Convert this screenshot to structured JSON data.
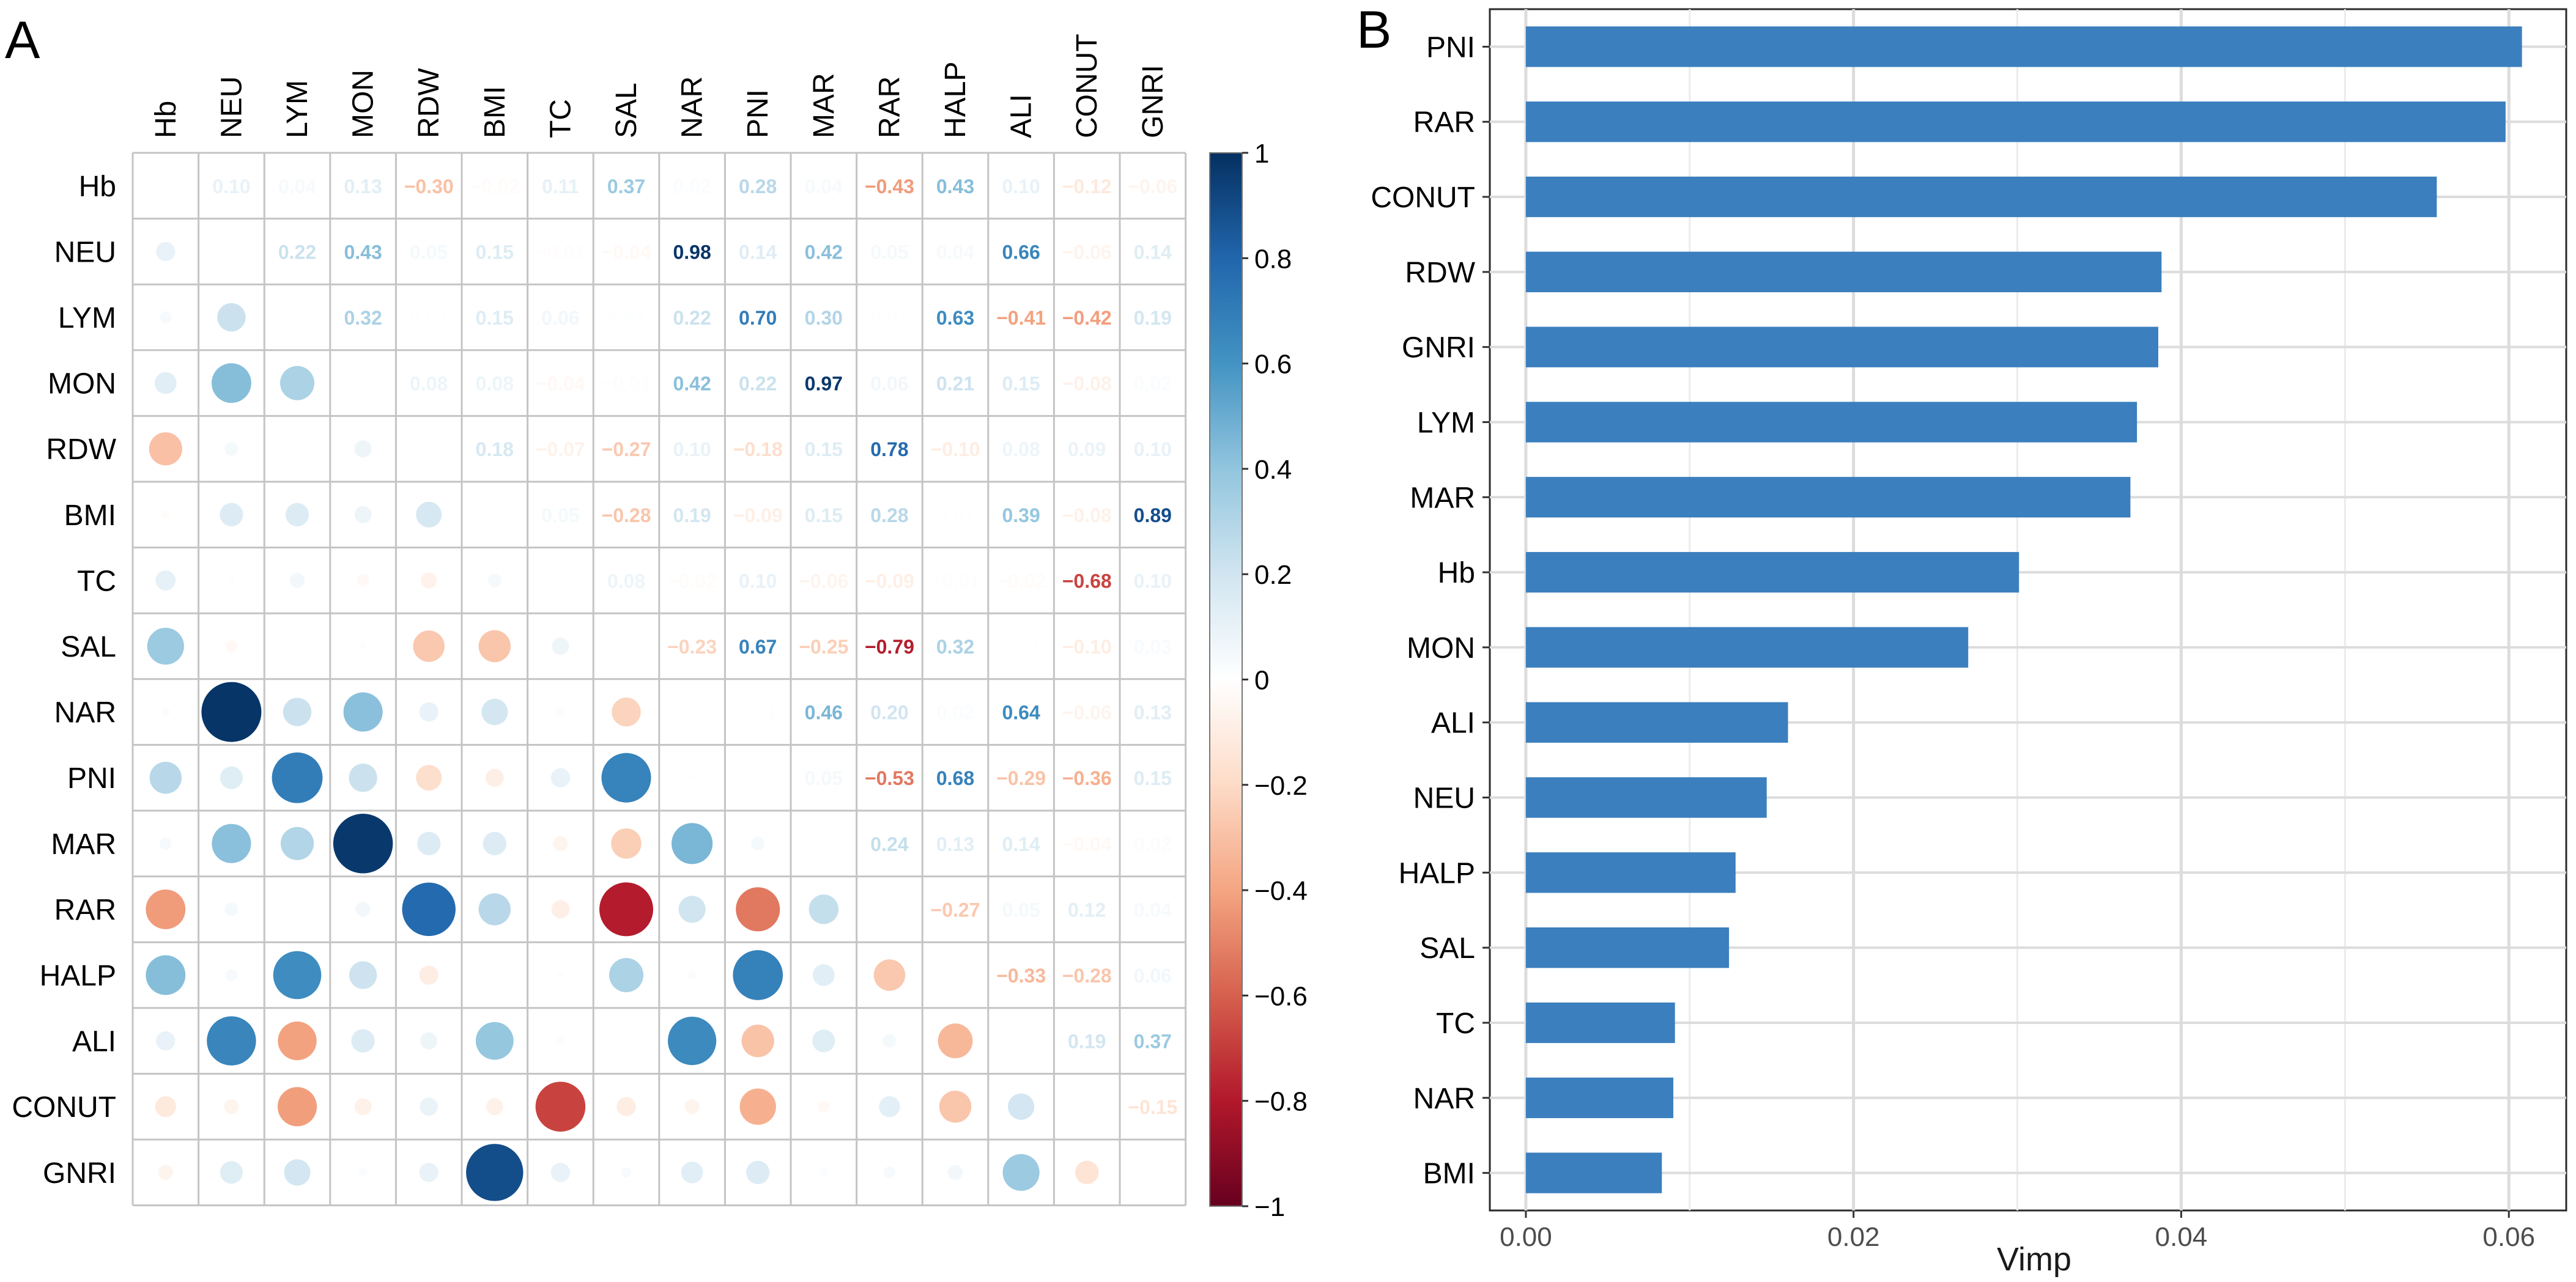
{
  "panels": [
    {
      "label": "A",
      "chart_data": {
        "type": "heatmap",
        "subtype": "correlation-matrix",
        "variables": [
          "Hb",
          "NEU",
          "LYM",
          "MON",
          "RDW",
          "BMI",
          "TC",
          "SAL",
          "NAR",
          "PNI",
          "MAR",
          "RAR",
          "HALP",
          "ALI",
          "CONUT",
          "GNRI"
        ],
        "upper_triangle_labels": [
          [
            null,
            "0.10",
            "0.04",
            "0.13",
            "−0.30",
            "−0.02",
            "0.11",
            "0.37",
            "0.02",
            "0.28",
            "0.04",
            "−0.43",
            "0.43",
            "0.10",
            "−0.12",
            "−0.06"
          ],
          [
            null,
            null,
            "0.22",
            "0.43",
            "0.05",
            "0.15",
            "−0.01",
            "−0.04",
            "0.98",
            "0.14",
            "0.42",
            "0.05",
            "0.04",
            "0.66",
            "−0.06",
            "0.14"
          ],
          [
            null,
            null,
            null,
            "0.32",
            "0.01",
            "0.15",
            "0.06",
            "0.01",
            "0.22",
            "0.70",
            "0.30",
            "0.01",
            "0.63",
            "−0.41",
            "−0.42",
            "0.19"
          ],
          [
            null,
            null,
            null,
            null,
            "0.08",
            "0.08",
            "−0.04",
            "−0.01",
            "0.42",
            "0.22",
            "0.97",
            "0.06",
            "0.21",
            "0.15",
            "−0.08",
            "0.02"
          ],
          [
            null,
            null,
            null,
            null,
            null,
            "0.18",
            "−0.07",
            "−0.27",
            "0.10",
            "−0.18",
            "0.15",
            "0.78",
            "−0.10",
            "0.08",
            "0.09",
            "0.10"
          ],
          [
            null,
            null,
            null,
            null,
            null,
            null,
            "0.05",
            "−0.28",
            "0.19",
            "−0.09",
            "0.15",
            "0.28",
            "0.01",
            "0.39",
            "−0.08",
            "0.89"
          ],
          [
            null,
            null,
            null,
            null,
            null,
            null,
            null,
            "0.08",
            "−0.02",
            "0.10",
            "−0.06",
            "−0.09",
            "−0.01",
            "−0.02",
            "−0.68",
            "0.10"
          ],
          [
            null,
            null,
            null,
            null,
            null,
            null,
            null,
            null,
            "−0.23",
            "0.67",
            "−0.25",
            "−0.79",
            "0.32",
            "0.01",
            "−0.10",
            "0.03"
          ],
          [
            null,
            null,
            null,
            null,
            null,
            null,
            null,
            null,
            null,
            "0.01",
            "0.46",
            "0.20",
            "0.02",
            "0.64",
            "−0.06",
            "0.13"
          ],
          [
            null,
            null,
            null,
            null,
            null,
            null,
            null,
            null,
            null,
            null,
            "0.05",
            "−0.53",
            "0.68",
            "−0.29",
            "−0.36",
            "0.15"
          ],
          [
            null,
            null,
            null,
            null,
            null,
            null,
            null,
            null,
            null,
            null,
            null,
            "0.24",
            "0.13",
            "0.14",
            "−0.04",
            "0.02"
          ],
          [
            null,
            null,
            null,
            null,
            null,
            null,
            null,
            null,
            null,
            null,
            null,
            null,
            "−0.27",
            "0.05",
            "0.12",
            "0.04"
          ],
          [
            null,
            null,
            null,
            null,
            null,
            null,
            null,
            null,
            null,
            null,
            null,
            null,
            null,
            "−0.33",
            "−0.28",
            "0.06"
          ],
          [
            null,
            null,
            null,
            null,
            null,
            null,
            null,
            null,
            null,
            null,
            null,
            null,
            null,
            null,
            "0.19",
            "0.37"
          ],
          [
            null,
            null,
            null,
            null,
            null,
            null,
            null,
            null,
            null,
            null,
            null,
            null,
            null,
            null,
            null,
            "−0.15"
          ],
          [
            null,
            null,
            null,
            null,
            null,
            null,
            null,
            null,
            null,
            null,
            null,
            null,
            null,
            null,
            null,
            null
          ]
        ],
        "lower_triangle": "circles sized and coloured by |r| (mirror of upper triangle)",
        "colorbar": {
          "min": -1,
          "max": 1,
          "ticks": [
            1,
            0.8,
            0.6,
            0.4,
            0.2,
            0,
            -0.2,
            -0.4,
            -0.6,
            -0.8,
            -1
          ],
          "tick_labels": [
            "1",
            "0.8",
            "0.6",
            "0.4",
            "0.2",
            "0",
            "−0.2",
            "−0.4",
            "−0.6",
            "−0.8",
            "−1"
          ]
        },
        "palette": [
          "#67001F",
          "#B2182B",
          "#D6604D",
          "#F4A582",
          "#FDDBC7",
          "#FFFFFF",
          "#D1E5F0",
          "#92C5DE",
          "#4393C3",
          "#2166AC",
          "#053061"
        ]
      }
    },
    {
      "label": "B",
      "chart_data": {
        "type": "bar",
        "orientation": "horizontal",
        "categories": [
          "PNI",
          "RAR",
          "CONUT",
          "RDW",
          "GNRI",
          "LYM",
          "MAR",
          "Hb",
          "MON",
          "ALI",
          "NEU",
          "HALP",
          "SAL",
          "TC",
          "NAR",
          "BMI"
        ],
        "values": [
          0.0608,
          0.0598,
          0.0556,
          0.0388,
          0.0386,
          0.0373,
          0.0369,
          0.0301,
          0.027,
          0.016,
          0.0147,
          0.0128,
          0.0124,
          0.0091,
          0.009,
          0.0083
        ],
        "xlabel": "Vimp",
        "ylabel": "",
        "xlim": [
          -0.0022,
          0.0635
        ],
        "xticks": [
          0.0,
          0.02,
          0.04,
          0.06
        ],
        "xtick_labels": [
          "0.00",
          "0.02",
          "0.04",
          "0.06"
        ],
        "bar_color": "#3B7FBE",
        "grid": true
      }
    }
  ]
}
